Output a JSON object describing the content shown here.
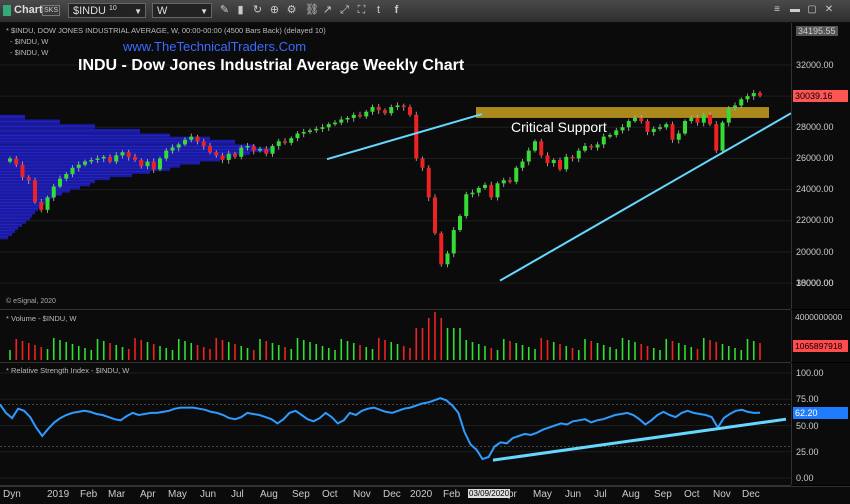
{
  "toolbar": {
    "title": "Chart",
    "title_badge": "SKS",
    "symbol": "$INDU",
    "symbol_num": "10",
    "interval": "W"
  },
  "header": {
    "series_line": "* $INDU, DOW JONES INDUSTRIAL AVERAGE, W, 00:00-00:00 (4500 Bars Back) (delayed 10)",
    "sub1": "- $INDU, W",
    "sub2": "- $INDU, W",
    "website": "www.TheTechnicalTraders.Com",
    "title": "INDU - Dow Jones Industrial Average Weekly Chart",
    "annotation": "Critical Support",
    "esignal": "© eSignal, 2020"
  },
  "price_axis": {
    "top_label": "34195.55",
    "ticks": [
      "32000.00",
      "30000.00",
      "28000.00",
      "26000.00",
      "24000.00",
      "22000.00",
      "20000.00",
      "18000.00"
    ],
    "last_price": "30039.16"
  },
  "volume_pane": {
    "label": "* Volume - $INDU, W",
    "top_tick": "4000000000",
    "last_value": "1065897918"
  },
  "rsi_pane": {
    "label": "* Relative Strength Index - $INDU, W",
    "ticks": [
      "100.00",
      "75.00",
      "50.00",
      "25.00",
      "0.00"
    ],
    "last_value": "62.20"
  },
  "x_axis": {
    "left_label": "Dyn",
    "labels": [
      "2019",
      "Feb",
      "Mar",
      "Apr",
      "May",
      "Jun",
      "Jul",
      "Aug",
      "Sep",
      "Oct",
      "Nov",
      "Dec",
      "2020",
      "Feb",
      "03/09/2020",
      "pr",
      "May",
      "Jun",
      "Jul",
      "Aug",
      "Sep",
      "Oct",
      "Nov",
      "Dec"
    ]
  },
  "colors": {
    "up": "#33dd33",
    "down": "#ee2222",
    "trend": "#66d8ff",
    "support": "#c8a020",
    "volume_profile": "#1a1aa0",
    "rsi": "#2e9bff",
    "last_price_tag": "#ff5555",
    "last_rsi_tag": "#1f7cff"
  },
  "chart_data": {
    "type": "candlestick",
    "title": "INDU - Dow Jones Industrial Average Weekly Chart",
    "ylim": [
      16500,
      34195.55
    ],
    "key_points": [
      {
        "label": "Feb 2020 peak",
        "value": 29500
      },
      {
        "label": "Mar 2020 low",
        "value": 18200
      },
      {
        "label": "Critical Support band",
        "value": [
          28600,
          29300
        ]
      },
      {
        "label": "Last price",
        "value": 30039.16
      }
    ],
    "rsi": {
      "ylim": [
        0,
        100
      ],
      "series": [
        70,
        62,
        57,
        66,
        64,
        58,
        48,
        40,
        47,
        53,
        57,
        60,
        62,
        63,
        64,
        63,
        61,
        60,
        58,
        56,
        55,
        59,
        62,
        60,
        61,
        62,
        62,
        63,
        64,
        66,
        67,
        67,
        67,
        66,
        65,
        63,
        62,
        60,
        57,
        56,
        58,
        62,
        61,
        60,
        58,
        56,
        52,
        56,
        62,
        64,
        60,
        56,
        54,
        57,
        62,
        58,
        52,
        55,
        62,
        60,
        64,
        66,
        67,
        65,
        63,
        62,
        64,
        66,
        67,
        69,
        71,
        72,
        74,
        76,
        74,
        69,
        62,
        44,
        32,
        27,
        18,
        20,
        30,
        34,
        33,
        38,
        40,
        42,
        41,
        43,
        46,
        48,
        50,
        52,
        51,
        54,
        55,
        56,
        53,
        55,
        56,
        58,
        60,
        61,
        62,
        60,
        56,
        51,
        55,
        60,
        63,
        60,
        58,
        62,
        64,
        62,
        61,
        60,
        58,
        48,
        57,
        61,
        64,
        65,
        63,
        62,
        62.2
      ]
    }
  }
}
